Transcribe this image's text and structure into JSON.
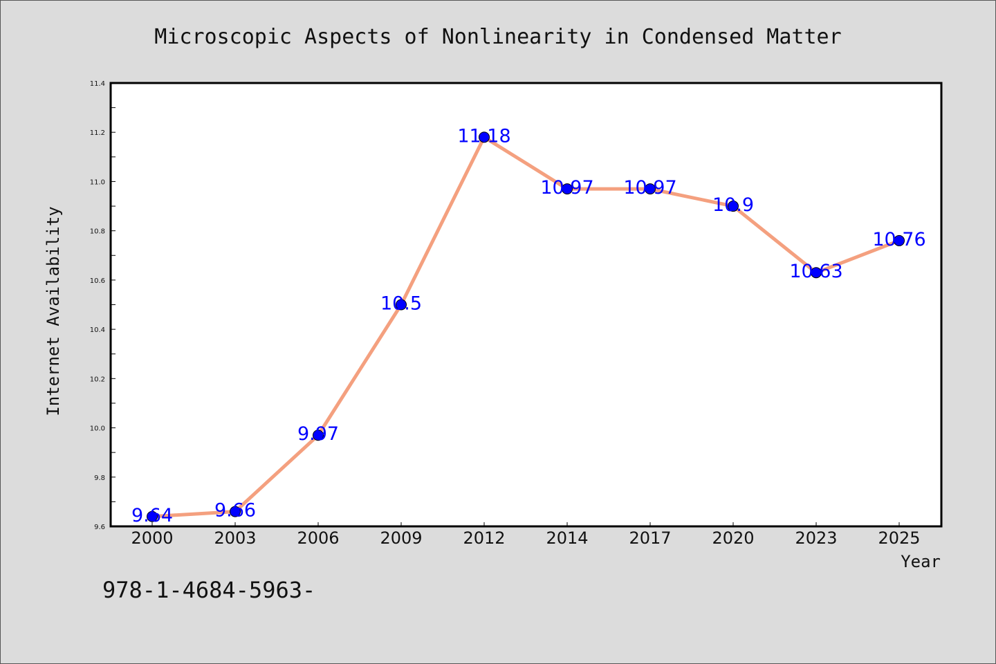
{
  "chart_data": {
    "type": "line",
    "title": "Microscopic Aspects of Nonlinearity in Condensed Matter",
    "xlabel": "Year",
    "ylabel": "Internet Availability",
    "categories": [
      "2000",
      "2003",
      "2006",
      "2009",
      "2012",
      "2014",
      "2017",
      "2020",
      "2023",
      "2025"
    ],
    "values": [
      9.64,
      9.66,
      9.97,
      10.5,
      11.18,
      10.97,
      10.97,
      10.9,
      10.63,
      10.76
    ],
    "data_labels": [
      "9.64",
      "9.66",
      "9.97",
      "10.5",
      "11.18",
      "10.97",
      "10.97",
      "10.9",
      "10.63",
      "10.76"
    ],
    "ylim": [
      9.6,
      11.4
    ],
    "yticks": [
      "9.6",
      "9.8",
      "10.0",
      "10.2",
      "10.4",
      "10.6",
      "10.8",
      "11.0",
      "11.2",
      "11.4"
    ],
    "grid": false,
    "colors": {
      "line": "#f4a07f",
      "marker": "#0000ff",
      "label": "#0000ff",
      "plot_bg": "#ffffff",
      "page_bg": "#dcdcdc"
    }
  },
  "footer": {
    "isbn": "978-1-4684-5963-"
  }
}
